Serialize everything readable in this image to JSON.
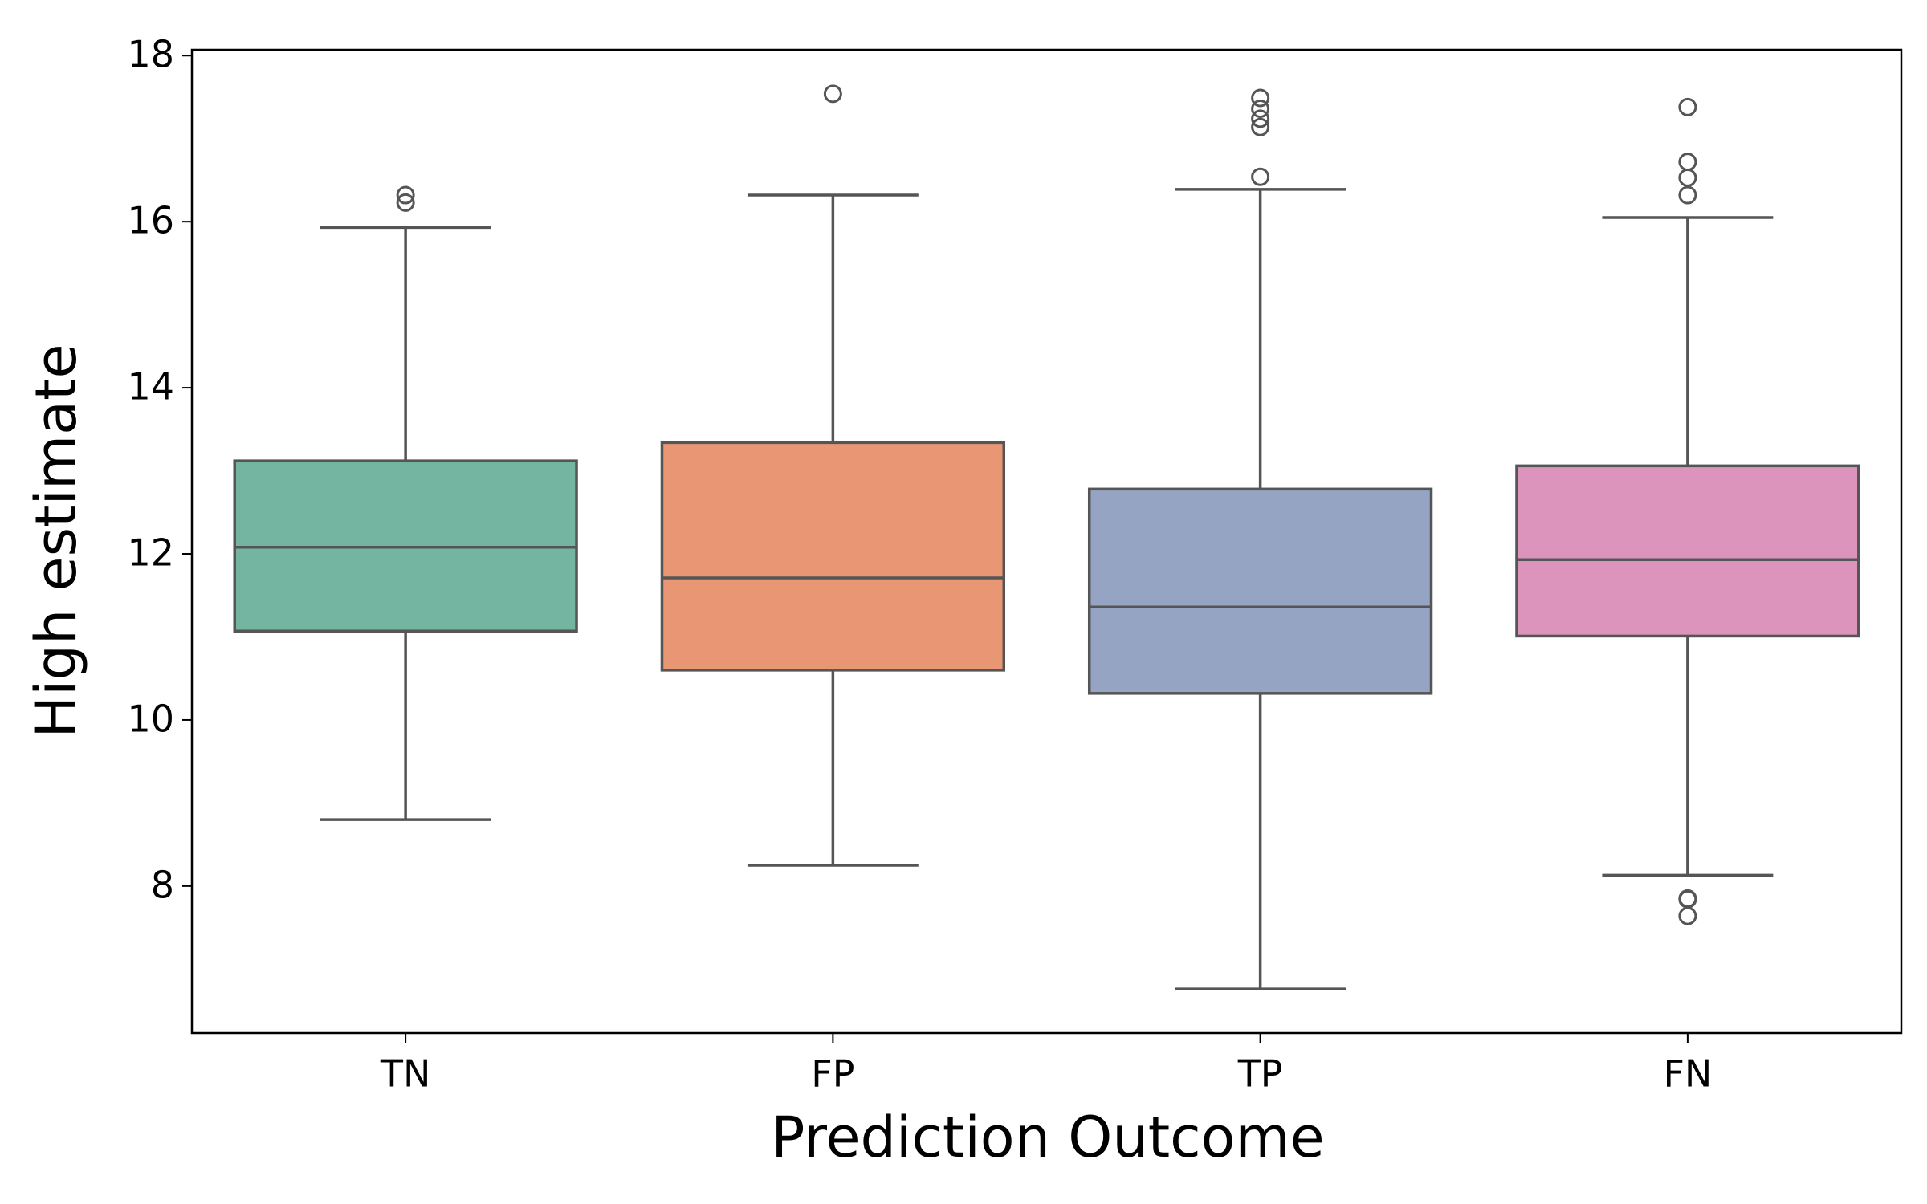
{
  "chart_data": {
    "type": "box",
    "x_label": "Prediction Outcome",
    "y_label": "High estimate",
    "categories": [
      "TN",
      "FP",
      "TP",
      "FN"
    ],
    "colors": [
      "#73b5a0",
      "#e89673",
      "#95a4c2",
      "#dc94bc"
    ],
    "whisker_low": [
      8.8,
      8.25,
      6.76,
      8.13
    ],
    "q1": [
      11.07,
      10.6,
      10.32,
      11.01
    ],
    "median": [
      12.08,
      11.71,
      11.36,
      11.93
    ],
    "q3": [
      13.12,
      13.34,
      12.78,
      13.06
    ],
    "whisker_high": [
      15.93,
      16.32,
      16.39,
      16.05
    ],
    "outliers": [
      [
        16.32,
        16.23
      ],
      [
        17.54
      ],
      [
        16.54,
        17.14,
        17.24,
        17.36,
        17.49
      ],
      [
        17.38,
        16.72,
        16.53,
        16.32,
        7.84,
        7.64,
        7.85
      ]
    ],
    "ylim": [
      6.23,
      18.07
    ],
    "yticks": [
      8,
      10,
      12,
      14,
      16,
      18
    ]
  }
}
